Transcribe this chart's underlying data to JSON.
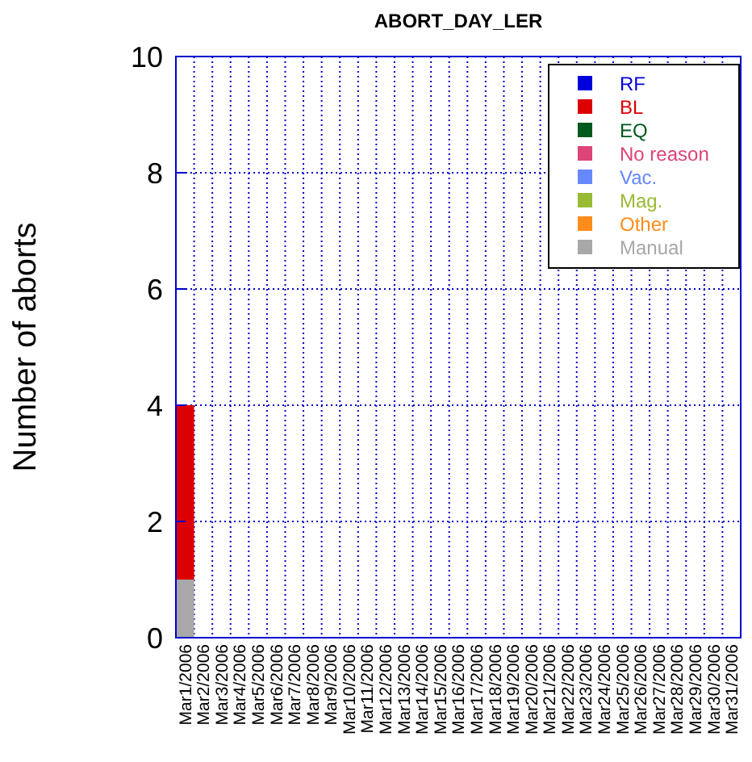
{
  "chart_data": {
    "type": "bar",
    "stacked": true,
    "title": "ABORT_DAY_LER",
    "ylabel": "Number of aborts",
    "categories": [
      "Mar1/2006",
      "Mar2/2006",
      "Mar3/2006",
      "Mar4/2006",
      "Mar5/2006",
      "Mar6/2006",
      "Mar7/2006",
      "Mar8/2006",
      "Mar9/2006",
      "Mar10/2006",
      "Mar11/2006",
      "Mar12/2006",
      "Mar13/2006",
      "Mar14/2006",
      "Mar15/2006",
      "Mar16/2006",
      "Mar17/2006",
      "Mar18/2006",
      "Mar19/2006",
      "Mar20/2006",
      "Mar21/2006",
      "Mar22/2006",
      "Mar23/2006",
      "Mar24/2006",
      "Mar25/2006",
      "Mar26/2006",
      "Mar27/2006",
      "Mar28/2006",
      "Mar29/2006",
      "Mar30/2006",
      "Mar31/2006"
    ],
    "series": [
      {
        "name": "Manual",
        "color": "#a8a8a8",
        "values": [
          1,
          0,
          0,
          0,
          0,
          0,
          0,
          0,
          0,
          0,
          0,
          0,
          0,
          0,
          0,
          0,
          0,
          0,
          0,
          0,
          0,
          0,
          0,
          0,
          0,
          0,
          0,
          0,
          0,
          0,
          0
        ]
      },
      {
        "name": "Other",
        "color": "#ff8c1a",
        "values": [
          0,
          0,
          0,
          0,
          0,
          0,
          0,
          0,
          0,
          0,
          0,
          0,
          0,
          0,
          0,
          0,
          0,
          0,
          0,
          0,
          0,
          0,
          0,
          0,
          0,
          0,
          0,
          0,
          0,
          0,
          0
        ]
      },
      {
        "name": "Mag.",
        "color": "#99bb33",
        "values": [
          0,
          0,
          0,
          0,
          0,
          0,
          0,
          0,
          0,
          0,
          0,
          0,
          0,
          0,
          0,
          0,
          0,
          0,
          0,
          0,
          0,
          0,
          0,
          0,
          0,
          0,
          0,
          0,
          0,
          0,
          0
        ]
      },
      {
        "name": "Vac.",
        "color": "#6688ff",
        "values": [
          0,
          0,
          0,
          0,
          0,
          0,
          0,
          0,
          0,
          0,
          0,
          0,
          0,
          0,
          0,
          0,
          0,
          0,
          0,
          0,
          0,
          0,
          0,
          0,
          0,
          0,
          0,
          0,
          0,
          0,
          0
        ]
      },
      {
        "name": "No reason",
        "color": "#dd4477",
        "values": [
          0,
          0,
          0,
          0,
          0,
          0,
          0,
          0,
          0,
          0,
          0,
          0,
          0,
          0,
          0,
          0,
          0,
          0,
          0,
          0,
          0,
          0,
          0,
          0,
          0,
          0,
          0,
          0,
          0,
          0,
          0
        ]
      },
      {
        "name": "EQ",
        "color": "#005a1e",
        "values": [
          0,
          0,
          0,
          0,
          0,
          0,
          0,
          0,
          0,
          0,
          0,
          0,
          0,
          0,
          0,
          0,
          0,
          0,
          0,
          0,
          0,
          0,
          0,
          0,
          0,
          0,
          0,
          0,
          0,
          0,
          0
        ]
      },
      {
        "name": "BL",
        "color": "#dd0000",
        "values": [
          3,
          0,
          0,
          0,
          0,
          0,
          0,
          0,
          0,
          0,
          0,
          0,
          0,
          0,
          0,
          0,
          0,
          0,
          0,
          0,
          0,
          0,
          0,
          0,
          0,
          0,
          0,
          0,
          0,
          0,
          0
        ]
      },
      {
        "name": "RF",
        "color": "#0000dd",
        "values": [
          0,
          0,
          0,
          0,
          0,
          0,
          0,
          0,
          0,
          0,
          0,
          0,
          0,
          0,
          0,
          0,
          0,
          0,
          0,
          0,
          0,
          0,
          0,
          0,
          0,
          0,
          0,
          0,
          0,
          0,
          0
        ]
      }
    ],
    "ylim": [
      0,
      10
    ],
    "yticks": [
      0,
      2,
      4,
      6,
      8,
      10
    ],
    "grid": true,
    "legend": "top right"
  }
}
